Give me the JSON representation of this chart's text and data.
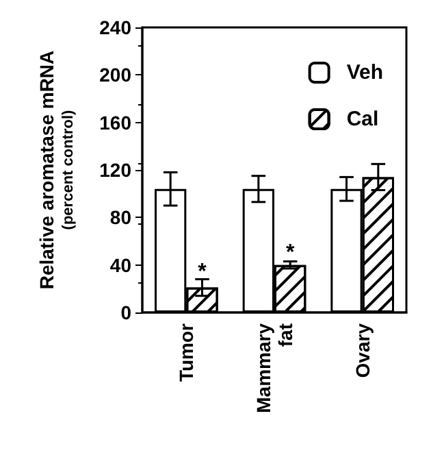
{
  "chart_data": {
    "type": "bar",
    "ylabel": "Relative aromatase mRNA\n(percent control)",
    "categories": [
      "Tumor",
      "Mammary\nfat",
      "Ovary"
    ],
    "series": [
      {
        "name": "Veh",
        "color": "#ffffff",
        "values": [
          104,
          104,
          104
        ],
        "errors": [
          14,
          11,
          10
        ]
      },
      {
        "name": "Cal",
        "color": "#ffffff",
        "values": [
          21,
          40,
          114
        ],
        "errors": [
          7,
          3,
          11
        ]
      }
    ],
    "ylim": [
      0,
      240
    ],
    "yticks": [
      0,
      40,
      80,
      120,
      160,
      200,
      240
    ],
    "grid": false,
    "legend": "top right",
    "annotations": [
      {
        "text": "*",
        "x": "Tumor",
        "y": 34
      },
      {
        "text": "*",
        "x": "Mammary\nfat",
        "y": 50
      }
    ]
  }
}
